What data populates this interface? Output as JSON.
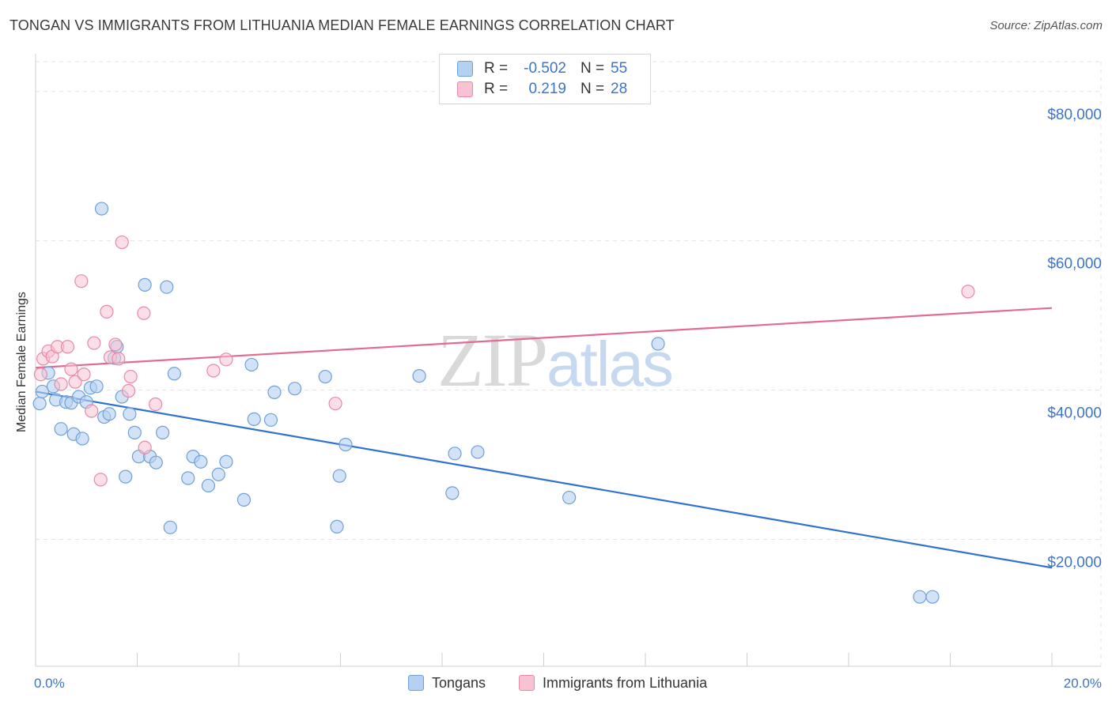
{
  "header": {
    "title": "TONGAN VS IMMIGRANTS FROM LITHUANIA MEDIAN FEMALE EARNINGS CORRELATION CHART",
    "source": "Source: ZipAtlas.com"
  },
  "watermark": {
    "zip": "ZIP",
    "atlas": "atlas"
  },
  "legend": {
    "tongans": {
      "r_label": "R =",
      "r_value": "-0.502",
      "n_label": "N =",
      "n_value": "55"
    },
    "lithuania": {
      "r_label": "R =",
      "r_value": "0.219",
      "n_label": "N =",
      "n_value": "28"
    }
  },
  "bottom_legend": {
    "tongans": "Tongans",
    "lithuania": "Immigrants from Lithuania"
  },
  "colors": {
    "blue_fill": "#b5d1f2",
    "blue_stroke": "#6f9fd8",
    "blue_line": "#2f72d0",
    "pink_fill": "#f7c3d2",
    "pink_stroke": "#e58aa8",
    "pink_line": "#e26b96",
    "tick_text": "#3d74c8",
    "grid": "#e2e2e2"
  },
  "chart_data": {
    "type": "scatter",
    "title": "TONGAN VS IMMIGRANTS FROM LITHUANIA MEDIAN FEMALE EARNINGS CORRELATION CHART",
    "xlabel": "",
    "ylabel": "Median Female Earnings",
    "xlim": [
      0,
      0.2
    ],
    "ylim": [
      3000,
      84000
    ],
    "x_tick_labels": [
      "0.0%",
      "20.0%"
    ],
    "y_ticks": [
      20000,
      40000,
      60000,
      80000
    ],
    "y_tick_labels": [
      "$20,000",
      "$40,000",
      "$60,000",
      "$80,000"
    ],
    "grid": true,
    "series": [
      {
        "name": "Tongans",
        "color": "blue",
        "points": [
          [
            0.0008,
            38200
          ],
          [
            0.0013,
            39800
          ],
          [
            0.0025,
            42300
          ],
          [
            0.0035,
            40500
          ],
          [
            0.004,
            38700
          ],
          [
            0.005,
            34800
          ],
          [
            0.006,
            38400
          ],
          [
            0.007,
            38300
          ],
          [
            0.0075,
            34100
          ],
          [
            0.0085,
            39100
          ],
          [
            0.0092,
            33500
          ],
          [
            0.01,
            38400
          ],
          [
            0.0108,
            40300
          ],
          [
            0.012,
            40500
          ],
          [
            0.013,
            64300
          ],
          [
            0.0135,
            36400
          ],
          [
            0.0145,
            36800
          ],
          [
            0.0155,
            44300
          ],
          [
            0.016,
            45800
          ],
          [
            0.017,
            39100
          ],
          [
            0.0177,
            28400
          ],
          [
            0.0185,
            36800
          ],
          [
            0.0195,
            34300
          ],
          [
            0.0203,
            31100
          ],
          [
            0.0215,
            54100
          ],
          [
            0.0225,
            31100
          ],
          [
            0.0237,
            30300
          ],
          [
            0.025,
            34300
          ],
          [
            0.0258,
            53800
          ],
          [
            0.0265,
            21600
          ],
          [
            0.0273,
            42200
          ],
          [
            0.03,
            28200
          ],
          [
            0.031,
            31100
          ],
          [
            0.0325,
            30400
          ],
          [
            0.034,
            27200
          ],
          [
            0.036,
            28700
          ],
          [
            0.0375,
            30400
          ],
          [
            0.041,
            25300
          ],
          [
            0.0425,
            43400
          ],
          [
            0.043,
            36100
          ],
          [
            0.0463,
            36000
          ],
          [
            0.047,
            39700
          ],
          [
            0.051,
            40200
          ],
          [
            0.057,
            41800
          ],
          [
            0.0593,
            21700
          ],
          [
            0.0598,
            28500
          ],
          [
            0.061,
            32700
          ],
          [
            0.0755,
            41900
          ],
          [
            0.082,
            26200
          ],
          [
            0.0825,
            31500
          ],
          [
            0.087,
            31700
          ],
          [
            0.105,
            25600
          ],
          [
            0.1225,
            46200
          ],
          [
            0.174,
            12300
          ],
          [
            0.1765,
            12300
          ]
        ]
      },
      {
        "name": "Immigrants from Lithuania",
        "color": "pink",
        "points": [
          [
            0.001,
            42100
          ],
          [
            0.0015,
            44200
          ],
          [
            0.0025,
            45200
          ],
          [
            0.0033,
            44500
          ],
          [
            0.0043,
            45800
          ],
          [
            0.005,
            40800
          ],
          [
            0.0063,
            45800
          ],
          [
            0.007,
            42800
          ],
          [
            0.0078,
            41100
          ],
          [
            0.009,
            54600
          ],
          [
            0.0095,
            42100
          ],
          [
            0.011,
            37200
          ],
          [
            0.0115,
            46300
          ],
          [
            0.0128,
            28000
          ],
          [
            0.014,
            50500
          ],
          [
            0.0147,
            44400
          ],
          [
            0.0157,
            46100
          ],
          [
            0.0163,
            44200
          ],
          [
            0.017,
            59800
          ],
          [
            0.0183,
            39900
          ],
          [
            0.0187,
            41800
          ],
          [
            0.0213,
            50300
          ],
          [
            0.0215,
            32300
          ],
          [
            0.0236,
            38100
          ],
          [
            0.035,
            42600
          ],
          [
            0.0375,
            44100
          ],
          [
            0.059,
            38200
          ],
          [
            0.1835,
            53200
          ]
        ]
      }
    ],
    "trendlines": [
      {
        "series": "Tongans",
        "x": [
          0,
          0.2
        ],
        "y": [
          39800,
          16200
        ]
      },
      {
        "series": "Immigrants from Lithuania",
        "x": [
          0,
          0.2
        ],
        "y": [
          43000,
          51000
        ]
      }
    ]
  }
}
